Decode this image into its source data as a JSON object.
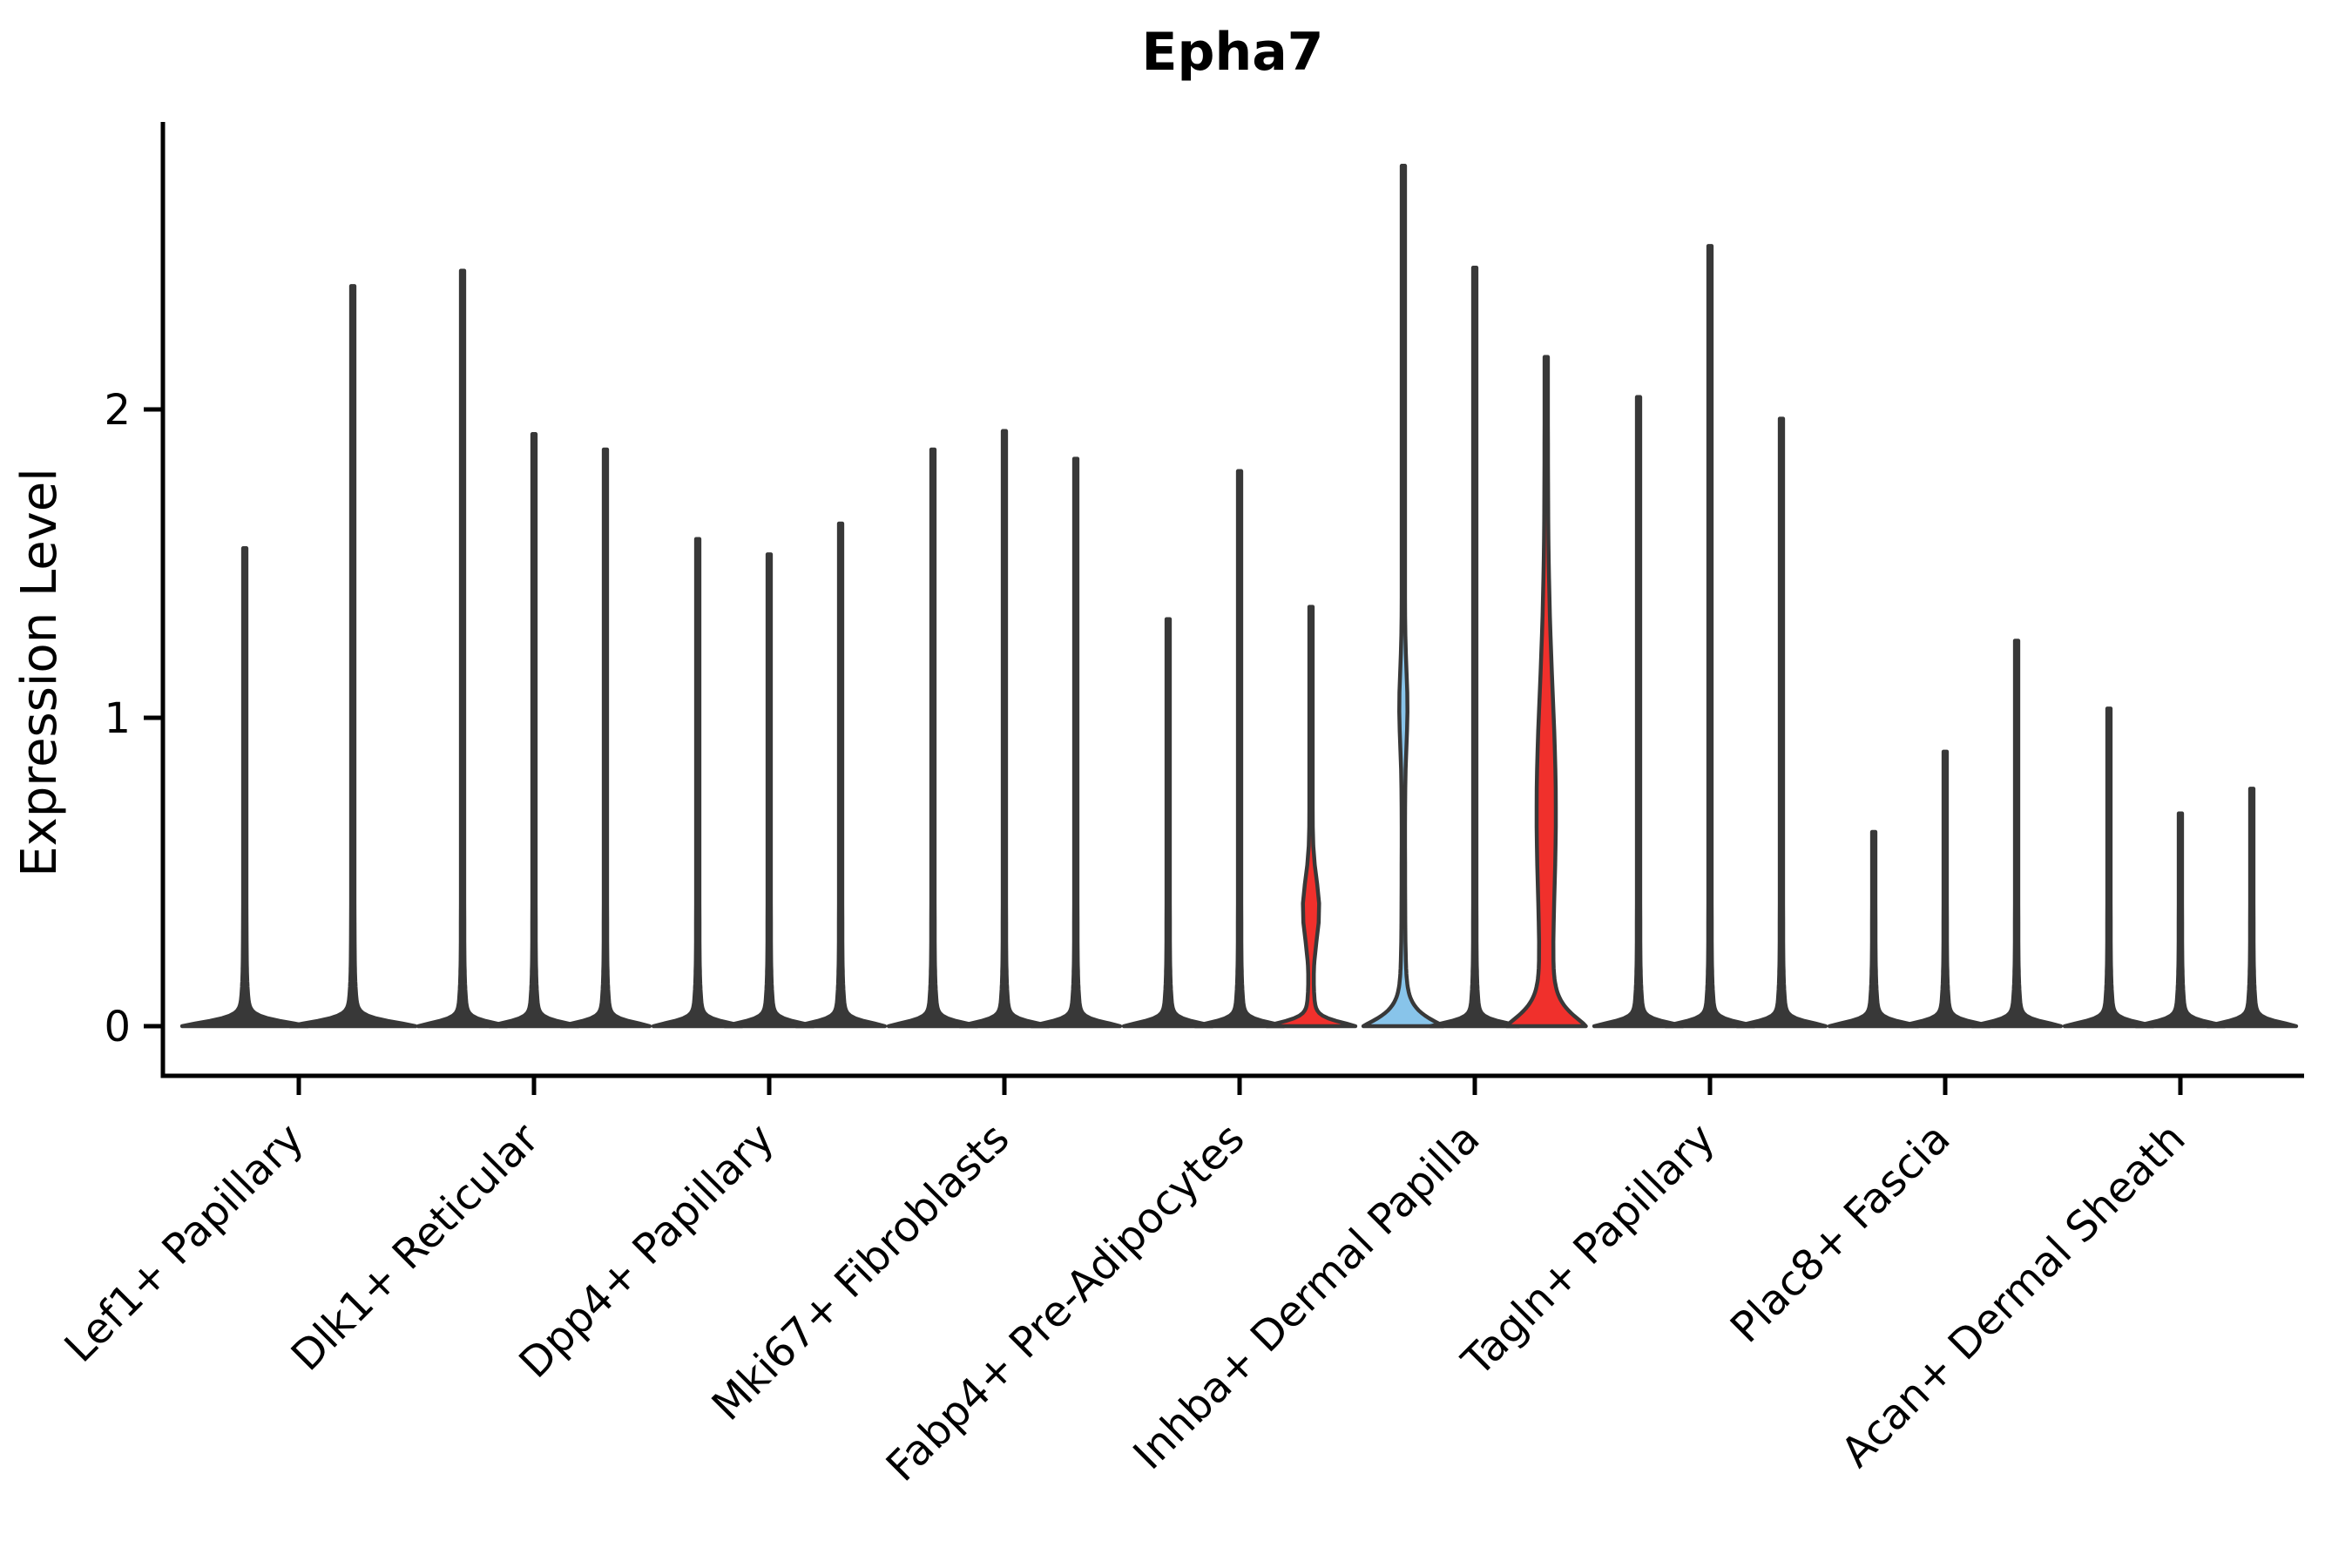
{
  "title": "Epha7",
  "y_axis": {
    "label": "Expression Level",
    "tick_labels": [
      "0",
      "1",
      "2"
    ]
  },
  "colors": {
    "red": "#F0302C",
    "blue": "#88C4EA",
    "outline": "#383838",
    "axis": "#000000",
    "background": "#ffffff"
  },
  "chart_data": {
    "type": "violin",
    "title": "Epha7",
    "xlabel": "",
    "ylabel": "Expression Level",
    "yticks": [
      0,
      1,
      2
    ],
    "ylim": [
      -0.17,
      2.93
    ],
    "grid": false,
    "legend": "none",
    "categories": [
      "Lef1+ Papillary",
      "Dlk1+ Reticular",
      "Dpp4+ Papillary",
      "Mki67+ Fibroblasts",
      "Fabp4+ Pre-Adipocytes",
      "Inhba+ Dermal Papilla",
      "Tagln+ Papillary",
      "Plac8+ Fascia",
      "Acan+ Dermal Sheath"
    ],
    "groups": [
      {
        "category": "Lef1+ Papillary",
        "violins": [
          {
            "max": 1.55,
            "bulk_max": 0.04,
            "shape": "flat",
            "color": "dark"
          },
          {
            "max": 2.4,
            "bulk_max": 0.04,
            "shape": "flat",
            "color": "dark"
          }
        ]
      },
      {
        "category": "Dlk1+ Reticular",
        "violins": [
          {
            "max": 2.45,
            "bulk_max": 0.04,
            "shape": "flat",
            "color": "dark"
          },
          {
            "max": 1.92,
            "bulk_max": 0.04,
            "shape": "flat",
            "color": "dark"
          },
          {
            "max": 1.87,
            "bulk_max": 0.04,
            "shape": "flat",
            "color": "dark"
          }
        ]
      },
      {
        "category": "Dpp4+ Papillary",
        "violins": [
          {
            "max": 1.58,
            "bulk_max": 0.04,
            "shape": "flat",
            "color": "dark"
          },
          {
            "max": 1.53,
            "bulk_max": 0.04,
            "shape": "flat",
            "color": "dark"
          },
          {
            "max": 1.63,
            "bulk_max": 0.04,
            "shape": "flat",
            "color": "dark"
          }
        ]
      },
      {
        "category": "Mki67+ Fibroblasts",
        "violins": [
          {
            "max": 1.87,
            "bulk_max": 0.04,
            "shape": "flat",
            "color": "dark"
          },
          {
            "max": 1.93,
            "bulk_max": 0.04,
            "shape": "flat",
            "color": "dark"
          },
          {
            "max": 1.84,
            "bulk_max": 0.04,
            "shape": "flat",
            "color": "dark"
          }
        ]
      },
      {
        "category": "Fabp4+ Pre-Adipocytes",
        "violins": [
          {
            "max": 1.32,
            "bulk_max": 0.04,
            "shape": "flat",
            "color": "dark"
          },
          {
            "max": 1.8,
            "bulk_max": 0.04,
            "shape": "flat",
            "color": "dark"
          },
          {
            "max": 1.36,
            "bulk_max": 0.6,
            "shape": "red-lens",
            "color": "red",
            "note": "filled red violin, lens bulge centered near 0.38"
          }
        ]
      },
      {
        "category": "Inhba+ Dermal Papilla",
        "violins": [
          {
            "max": 2.79,
            "bulk_max": 0.3,
            "shape": "blue-cone",
            "color": "blue",
            "note": "filled light-blue violin, wide cone at base, thin bulge near 1.0"
          },
          {
            "max": 2.46,
            "bulk_max": 0.04,
            "shape": "flat",
            "color": "dark"
          },
          {
            "max": 2.17,
            "bulk_max": 1.45,
            "shape": "red-wide",
            "color": "red",
            "note": "filled red violin, broad bulb at base, red column up to ~1.4"
          }
        ]
      },
      {
        "category": "Tagln+ Papillary",
        "violins": [
          {
            "max": 2.04,
            "bulk_max": 0.04,
            "shape": "flat",
            "color": "dark"
          },
          {
            "max": 2.53,
            "bulk_max": 0.04,
            "shape": "flat",
            "color": "dark"
          },
          {
            "max": 1.97,
            "bulk_max": 0.04,
            "shape": "flat",
            "color": "dark"
          }
        ]
      },
      {
        "category": "Plac8+ Fascia",
        "violins": [
          {
            "max": 0.63,
            "bulk_max": 0.04,
            "shape": "flat",
            "color": "dark"
          },
          {
            "max": 0.89,
            "bulk_max": 0.04,
            "shape": "flat",
            "color": "dark"
          },
          {
            "max": 1.25,
            "bulk_max": 0.04,
            "shape": "flat",
            "color": "dark"
          }
        ]
      },
      {
        "category": "Acan+ Dermal Sheath",
        "violins": [
          {
            "max": 1.03,
            "bulk_max": 0.04,
            "shape": "flat",
            "color": "dark"
          },
          {
            "max": 0.69,
            "bulk_max": 0.04,
            "shape": "flat",
            "color": "dark"
          },
          {
            "max": 0.77,
            "bulk_max": 0.04,
            "shape": "flat",
            "color": "dark"
          }
        ]
      }
    ]
  }
}
